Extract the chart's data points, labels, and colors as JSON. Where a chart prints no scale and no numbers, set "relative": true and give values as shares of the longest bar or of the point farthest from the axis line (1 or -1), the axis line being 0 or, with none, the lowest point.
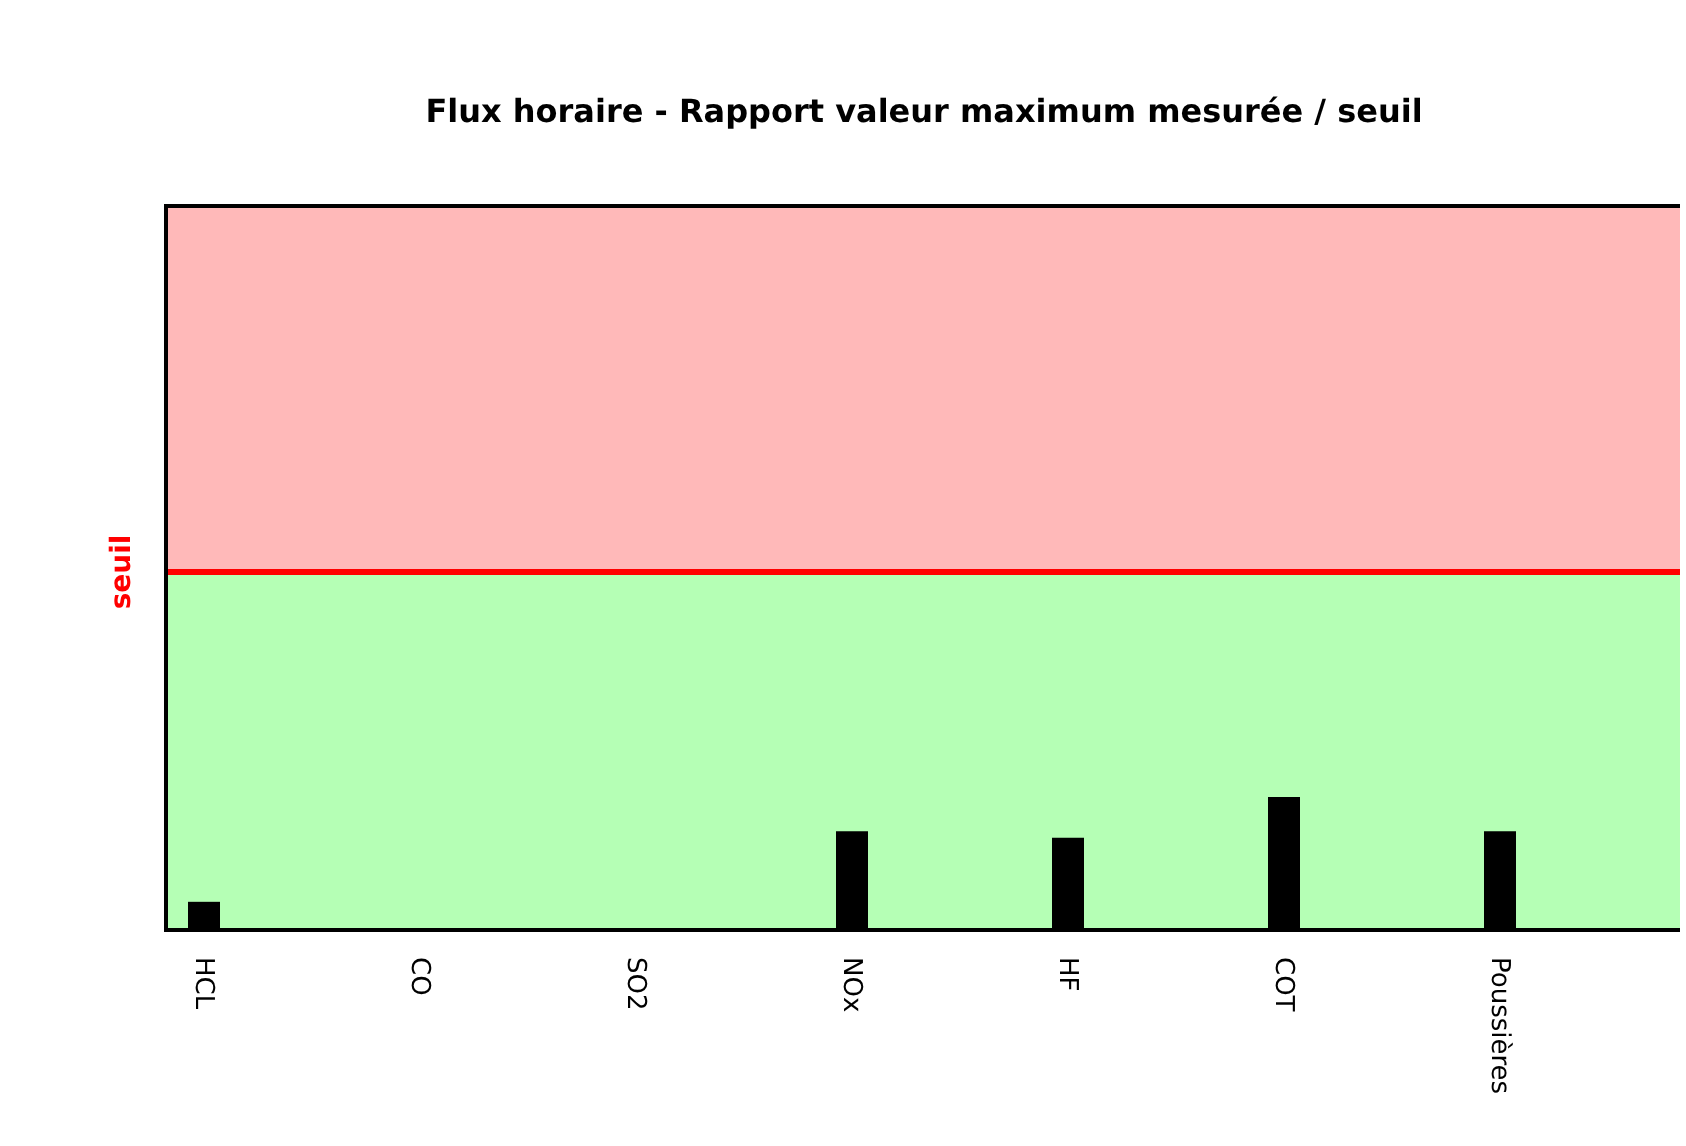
{
  "chart_data": {
    "type": "bar",
    "title": "Flux horaire      -      Rapport valeur maximum mesurée / seuil",
    "categories": [
      "HCL",
      "CO",
      "SO2",
      "NOx",
      "HF",
      "COT",
      "Poussières"
    ],
    "values": [
      0.2,
      0,
      0,
      0.74,
      0.69,
      1,
      0.74
    ],
    "color": "#000000",
    "relative": true,
    "ref_lines": [
      {
        "axis": "y",
        "value": 2.72,
        "label": "seuil",
        "color": "#ff0000"
      }
    ],
    "bands": [
      {
        "axis": "y",
        "from": 0,
        "to": 2.72,
        "color": "#b5ffb5"
      },
      {
        "axis": "y",
        "from": 2.72,
        "to": 5.5,
        "color": "#ffb9b9"
      }
    ]
  }
}
